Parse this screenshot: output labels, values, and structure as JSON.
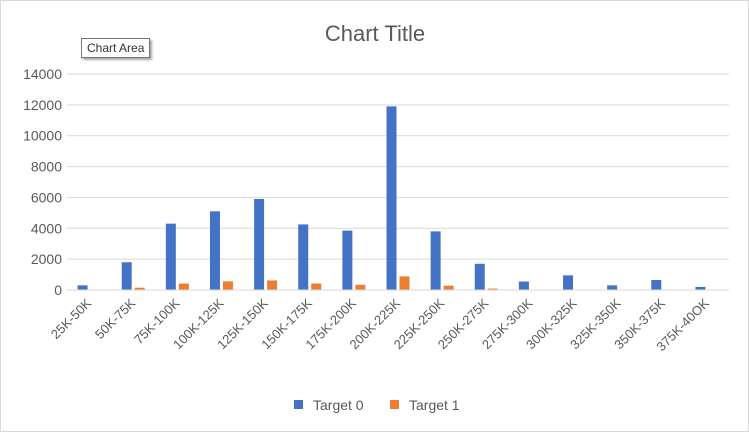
{
  "chart_data": {
    "type": "bar",
    "title": "Chart Title",
    "tooltip": "Chart Area",
    "categories": [
      "25K-50K",
      "50K-75K",
      "75K-100K",
      "100K-125K",
      "125K-150K",
      "150K-175K",
      "175K-200K",
      "200K-225K",
      "225K-250K",
      "250K-275K",
      "275K-300K",
      "300K-325K",
      "325K-350K",
      "350K-375K",
      "375K-40OK"
    ],
    "series": [
      {
        "name": "Target 0",
        "color": "#4472c4",
        "values": [
          300,
          1800,
          4300,
          5100,
          5900,
          4250,
          3850,
          11900,
          3800,
          1700,
          550,
          950,
          300,
          650,
          200
        ]
      },
      {
        "name": "Target 1",
        "color": "#ed7d31",
        "values": [
          20,
          150,
          420,
          560,
          620,
          420,
          340,
          880,
          280,
          90,
          10,
          0,
          0,
          0,
          0
        ]
      }
    ],
    "yticks": [
      "0",
      "2000",
      "4000",
      "6000",
      "8000",
      "10000",
      "12000",
      "14000"
    ],
    "ylim": [
      0,
      14000
    ],
    "grid": true,
    "legend": "bottom"
  }
}
